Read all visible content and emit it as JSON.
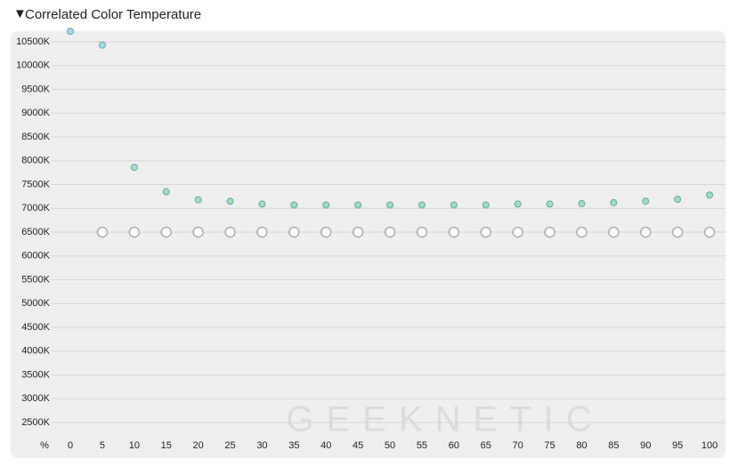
{
  "chart_data": {
    "type": "scatter",
    "toggle": "▼",
    "title": "Correlated Color Temperature",
    "x_label": "%",
    "watermark": "GEEKNETIC",
    "xlim": [
      -3,
      102.5
    ],
    "ylim": [
      2250,
      10750
    ],
    "xticks": [
      0,
      5,
      10,
      15,
      20,
      25,
      30,
      35,
      40,
      45,
      50,
      55,
      60,
      65,
      70,
      75,
      80,
      85,
      90,
      95,
      100
    ],
    "yticks": [
      {
        "value": 2500,
        "label": "2500K"
      },
      {
        "value": 3000,
        "label": "3000K"
      },
      {
        "value": 3500,
        "label": "3500K"
      },
      {
        "value": 4000,
        "label": "4000K"
      },
      {
        "value": 4500,
        "label": "4500K"
      },
      {
        "value": 5000,
        "label": "5000K"
      },
      {
        "value": 5500,
        "label": "5500K"
      },
      {
        "value": 6000,
        "label": "6000K"
      },
      {
        "value": 6500,
        "label": "6500K"
      },
      {
        "value": 7000,
        "label": "7000K"
      },
      {
        "value": 7500,
        "label": "7500K"
      },
      {
        "value": 8000,
        "label": "8000K"
      },
      {
        "value": 8500,
        "label": "8500K"
      },
      {
        "value": 9000,
        "label": "9000K"
      },
      {
        "value": 9500,
        "label": "9500K"
      },
      {
        "value": 10000,
        "label": "10000K"
      },
      {
        "value": 10500,
        "label": "10500K"
      }
    ],
    "grid": true,
    "series": [
      {
        "x": [
          0,
          5,
          10,
          15,
          20,
          25,
          30,
          35,
          40,
          45,
          50,
          55,
          60,
          65,
          70,
          75,
          80,
          85,
          90,
          95,
          100
        ],
        "values": [
          10720,
          10430,
          7860,
          7350,
          7180,
          7150,
          7090,
          7070,
          7070,
          7070,
          7070,
          7070,
          7070,
          7070,
          7090,
          7090,
          7100,
          7120,
          7150,
          7190,
          7280
        ],
        "colors": [
          "#a8d8ea",
          "#a8d8ea",
          "#a6dcd0",
          "#a4dcc4",
          "#a2dcbe",
          "#a2dcbe",
          "#a2dcbe",
          "#a2dcbe",
          "#a2dcbe",
          "#a2dcbe",
          "#a2dcbe",
          "#a2dcbe",
          "#a2dcbe",
          "#a2dcbe",
          "#a2dcbe",
          "#a2dcbe",
          "#a2dcbe",
          "#a2dcbe",
          "#a2dcbe",
          "#a2dcbe",
          "#a2dcbe"
        ],
        "stroke": "#6aa89a",
        "radius": 3.5,
        "filled": true
      },
      {
        "x": [
          5,
          10,
          15,
          20,
          25,
          30,
          35,
          40,
          45,
          50,
          55,
          60,
          65,
          70,
          75,
          80,
          85,
          90,
          95,
          100
        ],
        "values": [
          6500,
          6500,
          6500,
          6500,
          6500,
          6500,
          6500,
          6500,
          6500,
          6500,
          6500,
          6500,
          6500,
          6500,
          6500,
          6500,
          6500,
          6500,
          6500,
          6500
        ],
        "color": "#ffffff",
        "stroke": "#aaaaaa",
        "radius": 5.5,
        "filled": false
      }
    ]
  }
}
